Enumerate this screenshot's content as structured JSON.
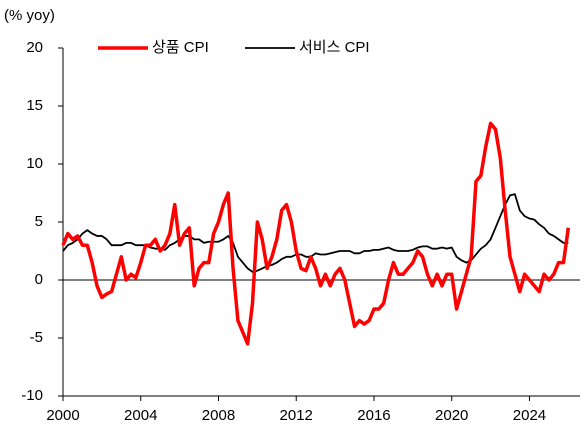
{
  "chart_data": {
    "type": "line",
    "axis_label": "(% yoy)",
    "x": [
      2000,
      2000.25,
      2000.5,
      2000.75,
      2001,
      2001.25,
      2001.5,
      2001.75,
      2002,
      2002.25,
      2002.5,
      2002.75,
      2003,
      2003.25,
      2003.5,
      2003.75,
      2004,
      2004.25,
      2004.5,
      2004.75,
      2005,
      2005.25,
      2005.5,
      2005.75,
      2006,
      2006.25,
      2006.5,
      2006.75,
      2007,
      2007.25,
      2007.5,
      2007.75,
      2008,
      2008.25,
      2008.5,
      2008.75,
      2009,
      2009.25,
      2009.5,
      2009.75,
      2010,
      2010.25,
      2010.5,
      2010.75,
      2011,
      2011.25,
      2011.5,
      2011.75,
      2012,
      2012.25,
      2012.5,
      2012.75,
      2013,
      2013.25,
      2013.5,
      2013.75,
      2014,
      2014.25,
      2014.5,
      2014.75,
      2015,
      2015.25,
      2015.5,
      2015.75,
      2016,
      2016.25,
      2016.5,
      2016.75,
      2017,
      2017.25,
      2017.5,
      2017.75,
      2018,
      2018.25,
      2018.5,
      2018.75,
      2019,
      2019.25,
      2019.5,
      2019.75,
      2020,
      2020.25,
      2020.5,
      2020.75,
      2021,
      2021.25,
      2021.5,
      2021.75,
      2022,
      2022.25,
      2022.5,
      2022.75,
      2023,
      2023.25,
      2023.5,
      2023.75,
      2024,
      2024.25,
      2024.5,
      2024.75,
      2025,
      2025.25,
      2025.5,
      2025.75,
      2026
    ],
    "series": [
      {
        "name": "상품 CPI",
        "color": "#ff0000",
        "values": [
          3.0,
          4.0,
          3.5,
          3.8,
          3.0,
          3.0,
          1.5,
          -0.5,
          -1.5,
          -1.2,
          -1.0,
          0.5,
          2.0,
          0.0,
          0.5,
          0.2,
          1.5,
          3.0,
          3.0,
          3.5,
          2.5,
          3.0,
          4.0,
          6.5,
          3.0,
          4.0,
          4.5,
          -0.5,
          1.0,
          1.5,
          1.5,
          4.0,
          5.0,
          6.5,
          7.5,
          1.0,
          -3.5,
          -4.5,
          -5.5,
          -2.0,
          5.0,
          3.5,
          1.0,
          2.0,
          3.5,
          6.0,
          6.5,
          5.0,
          2.5,
          1.0,
          0.8,
          2.0,
          1.0,
          -0.5,
          0.5,
          -0.5,
          0.5,
          1.0,
          0.0,
          -2.0,
          -4.0,
          -3.5,
          -3.8,
          -3.5,
          -2.5,
          -2.5,
          -2.0,
          0.0,
          1.5,
          0.5,
          0.5,
          1.0,
          1.5,
          2.5,
          2.0,
          0.5,
          -0.5,
          0.5,
          -0.5,
          0.5,
          0.5,
          -2.5,
          -1.0,
          0.5,
          2.0,
          8.5,
          9.0,
          11.5,
          13.5,
          13.0,
          10.5,
          6.0,
          2.0,
          0.5,
          -1.0,
          0.5,
          0.0,
          -0.5,
          -1.0,
          0.5,
          0.0,
          0.5,
          1.5,
          1.5,
          4.5
        ]
      },
      {
        "name": "서비스 CPI",
        "color": "#000000",
        "values": [
          2.5,
          3.0,
          3.2,
          3.5,
          4.0,
          4.3,
          4.0,
          3.8,
          3.8,
          3.5,
          3.0,
          3.0,
          3.0,
          3.2,
          3.2,
          3.0,
          3.0,
          3.0,
          2.8,
          2.7,
          2.7,
          2.6,
          3.0,
          3.2,
          3.5,
          3.8,
          3.8,
          3.5,
          3.5,
          3.2,
          3.3,
          3.3,
          3.3,
          3.5,
          3.8,
          3.2,
          2.0,
          1.5,
          1.0,
          0.7,
          0.8,
          1.0,
          1.2,
          1.3,
          1.5,
          1.8,
          2.0,
          2.0,
          2.2,
          2.2,
          2.0,
          2.0,
          2.3,
          2.2,
          2.2,
          2.3,
          2.4,
          2.5,
          2.5,
          2.5,
          2.3,
          2.3,
          2.5,
          2.5,
          2.6,
          2.6,
          2.7,
          2.8,
          2.6,
          2.5,
          2.5,
          2.5,
          2.6,
          2.8,
          2.9,
          2.9,
          2.7,
          2.7,
          2.8,
          2.7,
          2.8,
          2.0,
          1.7,
          1.5,
          1.7,
          2.2,
          2.7,
          3.0,
          3.5,
          4.5,
          5.5,
          6.5,
          7.3,
          7.4,
          6.0,
          5.5,
          5.3,
          5.2,
          4.8,
          4.5,
          4.0,
          3.8,
          3.5,
          3.2,
          3.2
        ]
      }
    ],
    "xlim": [
      2000,
      2026.6
    ],
    "xticks": [
      2000,
      2004,
      2008,
      2012,
      2016,
      2020,
      2024
    ],
    "ylim": [
      -10,
      20
    ],
    "yticks": [
      -10,
      -5,
      0,
      5,
      10,
      15,
      20
    ],
    "legend": "top"
  }
}
